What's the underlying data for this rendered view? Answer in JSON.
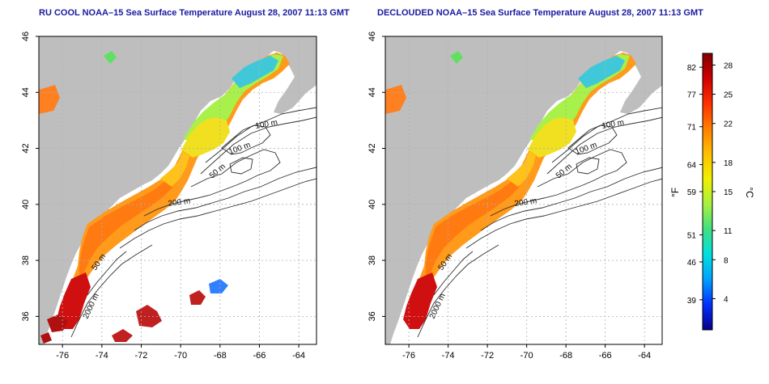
{
  "panels": [
    {
      "id": "left",
      "title": "RU COOL NOAA–15 Sea Surface Temperature August 28, 2007 11:13 GMT",
      "isobaths": [
        "100 m",
        "100 m",
        "50 m",
        "200 m",
        "50 m",
        "2000 m"
      ]
    },
    {
      "id": "right",
      "title": "DECLOUDED NOAA–15 Sea Surface Temperature August 28, 2007 11:13 GMT",
      "isobaths": [
        "100 m",
        "100 m",
        "50 m",
        "200 m",
        "50 m",
        "2000 m"
      ]
    }
  ],
  "axes": {
    "lon_ticks": [
      "-76",
      "-74",
      "-72",
      "-70",
      "-68",
      "-66",
      "-64"
    ],
    "lat_ticks": [
      "46",
      "44",
      "42",
      "40",
      "38",
      "36"
    ],
    "lon_range": [
      -77.2,
      -63.1
    ],
    "lat_range": [
      35.0,
      46.0
    ]
  },
  "colorbar": {
    "f_label": "°F",
    "c_label": "°C",
    "fahrenheit_ticks": [
      "82",
      "77",
      "71",
      "64",
      "59",
      "51",
      "46",
      "39"
    ],
    "celsius_ticks": [
      "28",
      "25",
      "22",
      "18",
      "15",
      "11",
      "8",
      "4"
    ],
    "colors": [
      "#08008a",
      "#0030ff",
      "#00a0ff",
      "#00e0e0",
      "#40e080",
      "#a8f040",
      "#f0f000",
      "#ffc000",
      "#ff8000",
      "#ff3000",
      "#d00000",
      "#800000"
    ]
  },
  "colors": {
    "land": "#bebebe",
    "title": "#1a1aa0",
    "grid": "#b0b0b0",
    "contour": "#303030"
  }
}
